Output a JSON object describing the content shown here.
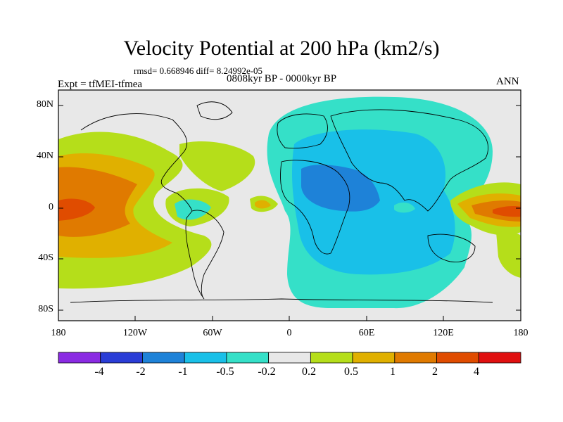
{
  "title": "Velocity Potential at 200 hPa (km2/s)",
  "stats": "rmsd= 0.668946 diff= 8.24992e-05",
  "period": "0808kyr BP - 0000kyr BP",
  "experiment": "Expt = tfMEI-tfmea",
  "season": "ANN",
  "axes": {
    "lat_ticks": [
      "80N",
      "40N",
      "0",
      "40S",
      "80S"
    ],
    "lon_ticks": [
      "180",
      "120W",
      "60W",
      "0",
      "60E",
      "120E",
      "180"
    ]
  },
  "colorbar": {
    "labels": [
      "-4",
      "-2",
      "-1",
      "-0.5",
      "-0.2",
      "0.2",
      "0.5",
      "1",
      "2",
      "4"
    ],
    "colors": [
      "#8a2be2",
      "#2a3dd6",
      "#1e82d8",
      "#19c0e8",
      "#35e0c8",
      "#e8e8e8",
      "#b5de1a",
      "#e0b000",
      "#e07a00",
      "#e04c00",
      "#e01010"
    ]
  }
}
